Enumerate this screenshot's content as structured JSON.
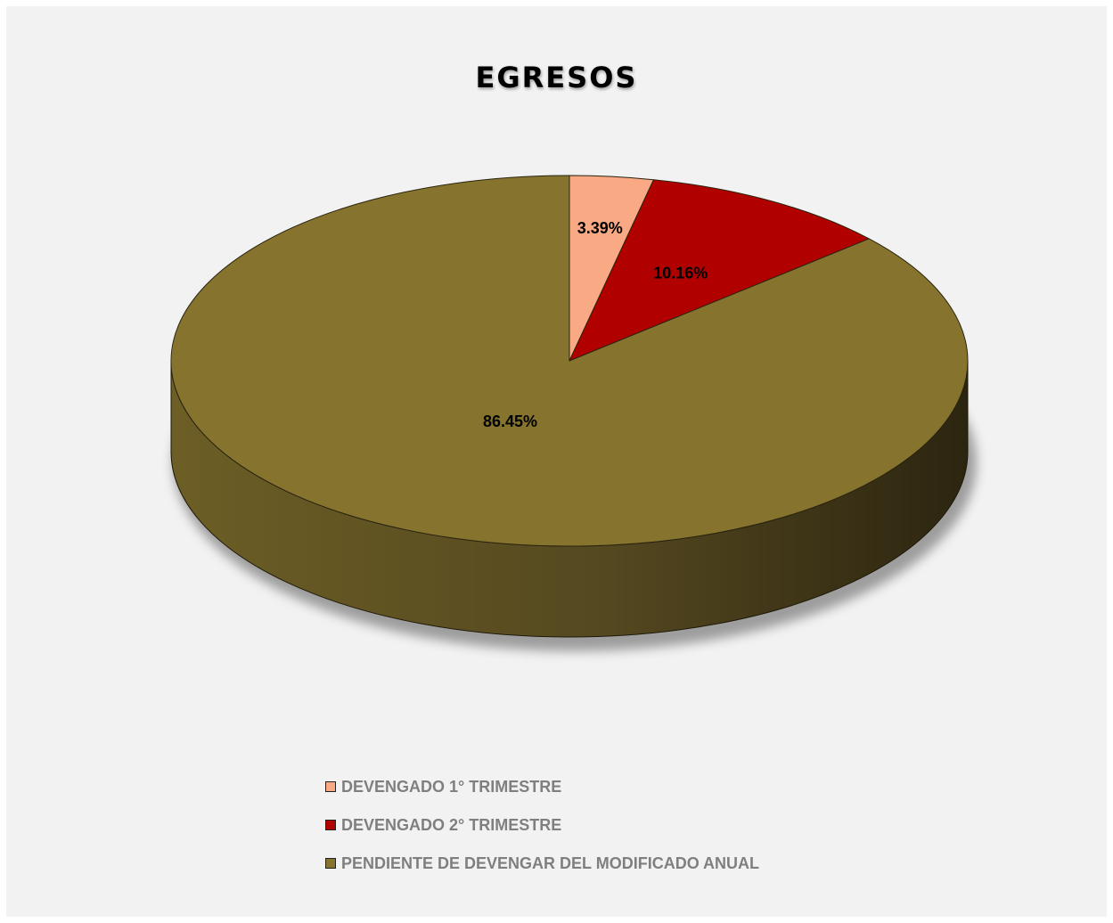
{
  "chart_data": {
    "type": "pie",
    "title": "EGRESOS",
    "style": "3d",
    "legend_position": "bottom",
    "slices": [
      {
        "name": "DEVENGADO 1° TRIMESTRE",
        "value": 3.39,
        "label": "3.39%",
        "color": "#f9a984"
      },
      {
        "name": "DEVENGADO 2° TRIMESTRE",
        "value": 10.16,
        "label": "10.16%",
        "color": "#b00000"
      },
      {
        "name": "PENDIENTE DE DEVENGAR DEL MODIFICADO ANUAL",
        "value": 86.45,
        "label": "86.45%",
        "color": "#86742e"
      }
    ]
  },
  "colors": {
    "background": "#f2f2f2",
    "legend_text": "#7f7f7f"
  }
}
